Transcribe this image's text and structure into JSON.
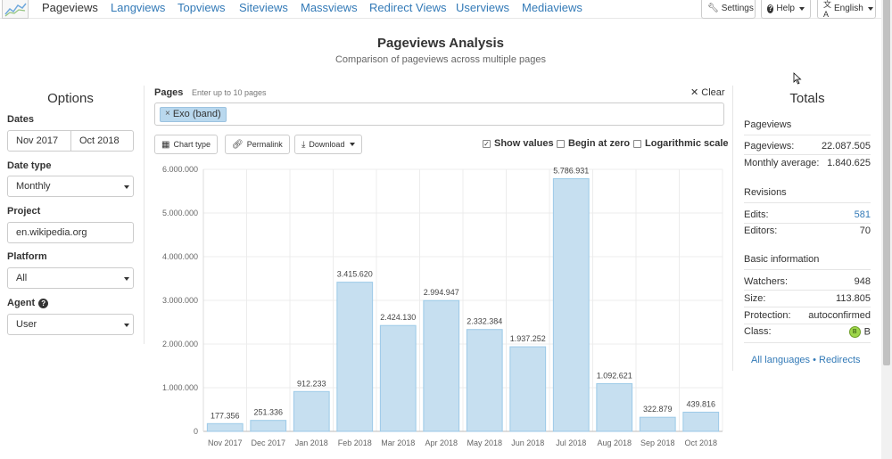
{
  "nav": {
    "items": [
      "Pageviews",
      "Langviews",
      "Topviews",
      "Siteviews",
      "Massviews",
      "Redirect Views",
      "Userviews",
      "Mediaviews"
    ],
    "settings_label": "Settings",
    "help_label": "Help",
    "language_label": "English"
  },
  "header": {
    "title": "Pageviews Analysis",
    "subtitle": "Comparison of pageviews across multiple pages"
  },
  "options": {
    "title": "Options",
    "dates_label": "Dates",
    "date_start": "Nov 2017",
    "date_end": "Oct 2018",
    "date_type_label": "Date type",
    "date_type_value": "Monthly",
    "project_label": "Project",
    "project_value": "en.wikipedia.org",
    "platform_label": "Platform",
    "platform_value": "All",
    "agent_label": "Agent",
    "agent_value": "User"
  },
  "pages": {
    "label": "Pages",
    "hint": "Enter up to 10 pages",
    "clear_label": "Clear",
    "tags": [
      "Exo (band)"
    ]
  },
  "toolbar": {
    "chart_type_label": "Chart type",
    "permalink_label": "Permalink",
    "download_label": "Download",
    "show_values_label": "Show values",
    "show_values_checked": true,
    "begin_at_zero_label": "Begin at zero",
    "begin_at_zero_checked": false,
    "log_scale_label": "Logarithmic scale",
    "log_scale_checked": false
  },
  "chart_data": {
    "type": "bar",
    "categories": [
      "Nov 2017",
      "Dec 2017",
      "Jan 2018",
      "Feb 2018",
      "Mar 2018",
      "Apr 2018",
      "May 2018",
      "Jun 2018",
      "Jul 2018",
      "Aug 2018",
      "Sep 2018",
      "Oct 2018"
    ],
    "values": [
      177356,
      251336,
      912233,
      3415620,
      2424130,
      2994947,
      2332384,
      1937252,
      5786931,
      1092621,
      322879,
      439816
    ],
    "value_labels": [
      "177.356",
      "251.336",
      "912.233",
      "3.415.620",
      "2.424.130",
      "2.994.947",
      "2.332.384",
      "1.937.252",
      "5.786.931",
      "1.092.621",
      "322.879",
      "439.816"
    ],
    "yticks": [
      0,
      1000000,
      2000000,
      3000000,
      4000000,
      5000000,
      6000000
    ],
    "ytick_labels": [
      "0",
      "1.000.000",
      "2.000.000",
      "3.000.000",
      "4.000.000",
      "5.000.000",
      "6.000.000"
    ],
    "ylim": [
      0,
      6000000
    ],
    "grid": true,
    "bar_color": "#c6dff0",
    "bar_border": "#9ccae8"
  },
  "totals": {
    "title": "Totals",
    "pageviews_heading": "Pageviews",
    "pageviews_label": "Pageviews:",
    "pageviews_value": "22.087.505",
    "monthly_avg_label": "Monthly average:",
    "monthly_avg_value": "1.840.625",
    "revisions_heading": "Revisions",
    "edits_label": "Edits:",
    "edits_value": "581",
    "editors_label": "Editors:",
    "editors_value": "70",
    "basic_heading": "Basic information",
    "watchers_label": "Watchers:",
    "watchers_value": "948",
    "size_label": "Size:",
    "size_value": "113.805",
    "protection_label": "Protection:",
    "protection_value": "autoconfirmed",
    "class_label": "Class:",
    "class_icon_text": "B",
    "class_value": "B",
    "all_languages_label": "All languages",
    "separator": "•",
    "redirects_label": "Redirects"
  }
}
